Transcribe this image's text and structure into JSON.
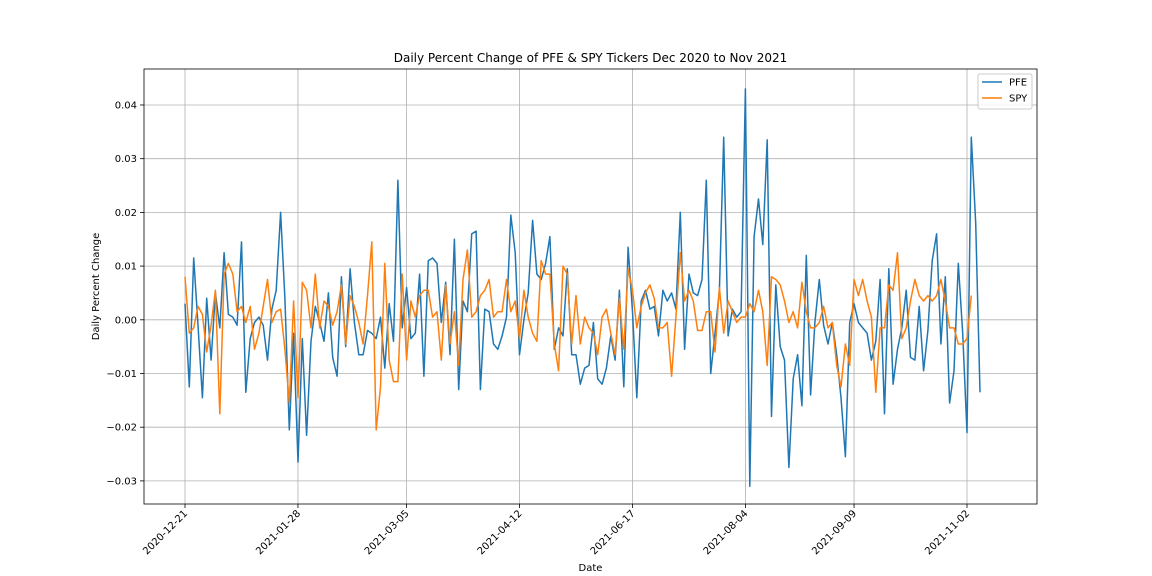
{
  "chart_data": {
    "type": "line",
    "title": "Daily Percent Change of PFE & SPY Tickers Dec 2020 to Nov 2021",
    "xlabel": "Date",
    "ylabel": "Daily Percent Change",
    "x_ticks": [
      "2020-12-21",
      "2021-01-28",
      "2021-03-05",
      "2021-04-12",
      "2021-06-17",
      "2021-08-04",
      "2021-09-09",
      "2021-11-02"
    ],
    "ylim": [
      -0.0343,
      0.0467
    ],
    "y_ticks": [
      -0.03,
      -0.02,
      -0.01,
      0.0,
      0.01,
      0.02,
      0.03,
      0.04
    ],
    "y_tick_labels": [
      "−0.03",
      "−0.02",
      "−0.01",
      "0.00",
      "0.01",
      "0.02",
      "0.03",
      "0.04"
    ],
    "grid": true,
    "legend_position": "top-right",
    "series": [
      {
        "name": "PFE",
        "color": "#1f77b4",
        "values": [
          0.003,
          -0.0125,
          0.0115,
          -0.001,
          -0.0145,
          0.004,
          -0.0075,
          0.005,
          -0.0015,
          0.0125,
          0.001,
          0.0005,
          -0.001,
          0.0145,
          -0.0135,
          -0.0035,
          -0.0005,
          0.0005,
          -0.001,
          -0.0075,
          0.002,
          0.0055,
          0.02,
          0.004,
          -0.0205,
          -0.0025,
          -0.0265,
          -0.0035,
          -0.0215,
          -0.004,
          0.0025,
          -0.0005,
          -0.004,
          0.005,
          -0.007,
          -0.0105,
          0.008,
          -0.005,
          0.0095,
          -0.0005,
          -0.0065,
          -0.0065,
          -0.002,
          -0.0025,
          -0.0035,
          0.0005,
          -0.009,
          0.003,
          -0.004,
          0.026,
          -0.0015,
          0.006,
          -0.0035,
          -0.0025,
          0.0085,
          -0.0105,
          0.011,
          0.0115,
          0.0105,
          -0.0005,
          0.007,
          -0.0065,
          0.015,
          -0.013,
          0.0035,
          0.0015,
          0.016,
          0.0165,
          -0.013,
          0.002,
          0.0015,
          -0.0045,
          -0.0055,
          -0.003,
          0.0005,
          0.0195,
          0.0125,
          -0.0065,
          0.0,
          0.005,
          0.0185,
          0.0085,
          0.0075,
          0.0105,
          0.0155,
          -0.0055,
          -0.0015,
          -0.003,
          0.0095,
          -0.0065,
          -0.0065,
          -0.012,
          -0.009,
          -0.0085,
          -0.0005,
          -0.011,
          -0.012,
          -0.009,
          -0.003,
          -0.0075,
          0.0055,
          -0.0125,
          0.0135,
          0.0015,
          -0.0145,
          0.0035,
          0.0055,
          0.002,
          0.0025,
          -0.003,
          0.0055,
          0.0035,
          0.005,
          0.002,
          0.02,
          -0.0055,
          0.0085,
          0.005,
          0.0045,
          0.0075,
          0.026,
          -0.01,
          -0.0025,
          0.0055,
          0.034,
          -0.003,
          0.002,
          0.0005,
          0.0015,
          0.043,
          -0.031,
          0.0155,
          0.0225,
          0.014,
          0.0335,
          -0.018,
          0.0065,
          -0.005,
          -0.0075,
          -0.0275,
          -0.011,
          -0.0065,
          -0.016,
          0.012,
          -0.014,
          -0.0005,
          0.0075,
          -0.001,
          -0.0045,
          -0.0005,
          -0.0065,
          -0.0145,
          -0.0255,
          -0.0005,
          0.003,
          -0.0005,
          -0.0015,
          -0.0025,
          -0.0075,
          -0.004,
          0.0075,
          -0.0175,
          0.0095,
          -0.012,
          -0.0055,
          -0.0015,
          0.0055,
          -0.007,
          -0.0075,
          0.0025,
          -0.0095,
          -0.002,
          0.011,
          0.016,
          -0.0045,
          0.008,
          -0.0155,
          -0.0095,
          0.0105,
          -0.0025,
          -0.021,
          0.034,
          0.018,
          -0.0135
        ]
      },
      {
        "name": "SPY",
        "color": "#ff7f0e",
        "values": [
          0.008,
          -0.0025,
          -0.0015,
          0.0025,
          0.001,
          -0.006,
          -0.001,
          0.0055,
          -0.0175,
          0.0085,
          0.0105,
          0.0085,
          0.0015,
          0.0025,
          -0.0005,
          0.0025,
          -0.0055,
          -0.0025,
          0.0025,
          0.0075,
          -0.0005,
          0.0015,
          0.002,
          -0.0055,
          -0.0155,
          0.0035,
          -0.0145,
          0.007,
          0.0055,
          -0.0015,
          0.0085,
          -0.0015,
          0.0035,
          0.0025,
          -0.001,
          0.0015,
          0.0065,
          -0.0045,
          0.0045,
          0.0025,
          -0.0005,
          -0.0045,
          0.0045,
          0.0145,
          -0.0205,
          -0.0125,
          0.0105,
          -0.0075,
          -0.0115,
          -0.0115,
          0.0085,
          -0.0075,
          0.0035,
          0.0005,
          0.0045,
          0.0055,
          0.0055,
          0.0005,
          0.0015,
          -0.0075,
          0.0065,
          -0.0045,
          0.0015,
          -0.0085,
          0.0075,
          0.013,
          0.0005,
          0.0015,
          0.0045,
          0.0055,
          0.0075,
          0.0005,
          0.0015,
          0.0015,
          0.0075,
          0.0015,
          0.0035,
          -0.0035,
          0.0055,
          0.0005,
          -0.0025,
          -0.004,
          0.011,
          0.0085,
          0.0085,
          -0.0045,
          -0.0095,
          0.01,
          0.0085,
          -0.0045,
          0.0045,
          -0.0045,
          0.0005,
          -0.0015,
          -0.0025,
          -0.0065,
          0.0005,
          0.002,
          -0.0025,
          -0.0065,
          0.004,
          -0.0055,
          0.0095,
          0.0055,
          -0.0015,
          0.0025,
          0.005,
          0.0065,
          0.004,
          -0.0015,
          -0.0015,
          -0.0005,
          -0.0105,
          0.0005,
          0.0125,
          0.0035,
          0.0055,
          0.0035,
          -0.002,
          -0.002,
          0.0015,
          0.0015,
          -0.006,
          0.006,
          -0.0025,
          0.0035,
          0.0015,
          -0.0005,
          0.0005,
          0.0005,
          0.003,
          0.0015,
          0.0055,
          0.0015,
          -0.0085,
          0.008,
          0.0075,
          0.0065,
          0.0035,
          -0.0005,
          0.0015,
          -0.0015,
          0.007,
          0.0015,
          -0.0015,
          -0.0015,
          -0.0005,
          0.0025,
          -0.0015,
          -0.0005,
          -0.0085,
          -0.0125,
          -0.0045,
          -0.0085,
          0.0075,
          0.0045,
          0.0075,
          0.0035,
          0.0005,
          -0.0135,
          -0.0015,
          -0.0015,
          0.0065,
          0.0055,
          0.0125,
          -0.0035,
          -0.0015,
          0.0035,
          0.0075,
          0.0045,
          0.0035,
          0.0045,
          0.0035,
          0.0045,
          0.0075,
          0.0035,
          -0.0015,
          -0.0015,
          -0.0045,
          -0.0045,
          -0.0035,
          0.0045
        ]
      }
    ]
  }
}
